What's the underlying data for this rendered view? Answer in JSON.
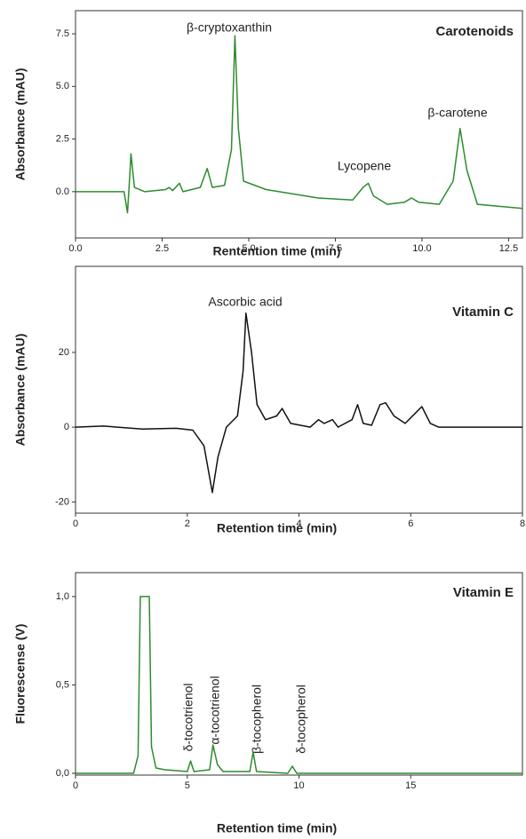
{
  "chart_data": [
    {
      "type": "line",
      "title": "Carotenoids",
      "xlabel": "Rentention time (min)",
      "ylabel": "Absorbance (mAU)",
      "annotations": [
        "β-cryptoxanthin",
        "Lycopene",
        "β-carotene"
      ],
      "color": "#2e8b2e",
      "x": [
        0,
        1.4,
        1.5,
        1.55,
        1.6,
        1.7,
        2,
        2.6,
        2.7,
        2.8,
        3.0,
        3.1,
        3.6,
        3.8,
        3.95,
        4.3,
        4.5,
        4.6,
        4.7,
        4.85,
        5.5,
        7,
        8,
        8.3,
        8.45,
        8.6,
        9,
        9.5,
        9.7,
        9.9,
        10.5,
        10.9,
        11.1,
        11.3,
        11.6,
        12.9
      ],
      "values": [
        0,
        0,
        -1.0,
        0.3,
        1.8,
        0.2,
        0,
        0.1,
        0.2,
        0.05,
        0.4,
        0,
        0.2,
        1.1,
        0.2,
        0.3,
        2,
        7.4,
        3,
        0.5,
        0.1,
        -0.3,
        -0.4,
        0.2,
        0.4,
        -0.2,
        -0.6,
        -0.5,
        -0.3,
        -0.5,
        -0.6,
        0.5,
        3.0,
        1,
        -0.6,
        -0.8
      ],
      "xlim": [
        0,
        12.9
      ],
      "ylim": [
        -2.2,
        8.6
      ],
      "xticks": [
        {
          "value": 0,
          "label": "0.0"
        },
        2.5,
        {
          "value": 5,
          "label": "5.0"
        },
        7.5,
        {
          "value": 10,
          "label": "10.0"
        },
        12.5
      ],
      "yticks": [
        {
          "value": 0,
          "label": "0.0"
        },
        2.5,
        {
          "value": 5,
          "label": "5.0"
        },
        7.5
      ]
    },
    {
      "type": "line",
      "title": "Vitamin C",
      "xlabel": "Retention time (min)",
      "ylabel": "Absorbance (mAU)",
      "annotations": [
        "Ascorbic acid"
      ],
      "color": "#111111",
      "x": [
        0,
        0.5,
        1.2,
        1.8,
        2.1,
        2.3,
        2.45,
        2.55,
        2.7,
        2.9,
        3.0,
        3.05,
        3.15,
        3.25,
        3.4,
        3.6,
        3.7,
        3.85,
        4.2,
        4.35,
        4.45,
        4.6,
        4.7,
        4.95,
        5.05,
        5.15,
        5.3,
        5.45,
        5.55,
        5.7,
        5.9,
        6.1,
        6.2,
        6.35,
        6.5,
        8
      ],
      "values": [
        0,
        0.3,
        -0.5,
        -0.3,
        -0.8,
        -5,
        -17.5,
        -8,
        0,
        3,
        15,
        30.5,
        20,
        6,
        2,
        3,
        5,
        1,
        0,
        2,
        1,
        2,
        0,
        2,
        6,
        1,
        0.5,
        6,
        6.5,
        3,
        1,
        4,
        5.5,
        1,
        0,
        0
      ],
      "xlim": [
        0,
        8
      ],
      "ylim": [
        -23,
        43
      ],
      "xticks": [
        0,
        2,
        4,
        6,
        8
      ],
      "yticks": [
        -20,
        0,
        20
      ]
    },
    {
      "type": "line",
      "title": "Vitamin E",
      "xlabel": "Retention time (min)",
      "ylabel": "Fluorescense (V)",
      "annotations": [
        "δ-tocotrienol",
        "α-tocotrienol",
        "β-tocopherol",
        "δ-tocopherol"
      ],
      "color": "#2e8b2e",
      "x": [
        0,
        2.6,
        2.8,
        2.9,
        3.3,
        3.4,
        3.6,
        4,
        5,
        5.15,
        5.3,
        6,
        6.15,
        6.35,
        6.6,
        7.8,
        7.95,
        8.1,
        9.5,
        9.7,
        9.9,
        20
      ],
      "values": [
        0,
        0,
        0.1,
        1.0,
        1.0,
        0.15,
        0.03,
        0.02,
        0.01,
        0.07,
        0.01,
        0.02,
        0.16,
        0.05,
        0.01,
        0.01,
        0.12,
        0.01,
        0,
        0.04,
        0,
        0
      ],
      "xlim": [
        0,
        20
      ],
      "ylim": [
        -0.01,
        1.135
      ],
      "xticks": [
        0,
        5,
        10,
        15
      ],
      "yticks": [
        {
          "value": 0,
          "label": "0,0"
        },
        {
          "value": 0.5,
          "label": "0,5"
        },
        {
          "value": 1,
          "label": "1,0"
        }
      ]
    }
  ]
}
